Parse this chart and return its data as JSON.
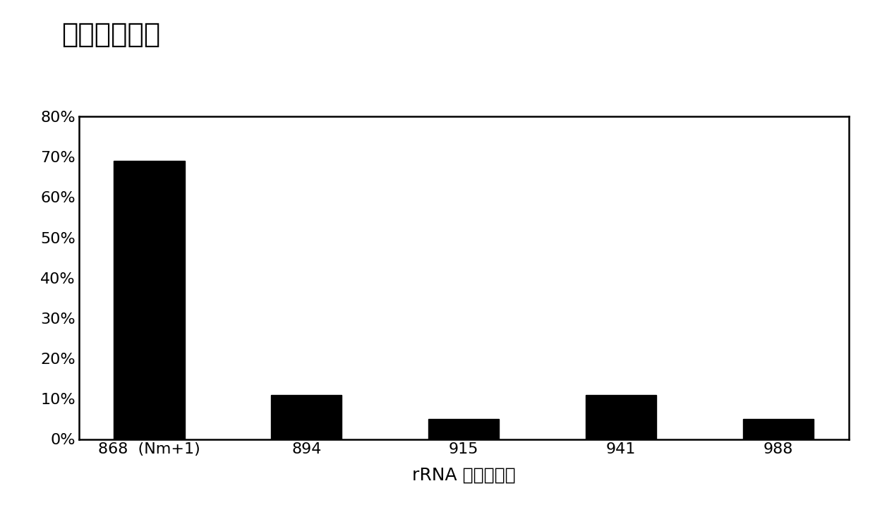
{
  "title": "片段所占比例",
  "xlabel": "rRNA 核苷酸序号",
  "ylabel": "",
  "categories": [
    "868  (Nm+1)",
    "894",
    "915",
    "941",
    "988"
  ],
  "values": [
    0.69,
    0.11,
    0.05,
    0.11,
    0.05
  ],
  "bar_color": "#000000",
  "ylim": [
    0,
    0.8
  ],
  "yticks": [
    0,
    0.1,
    0.2,
    0.3,
    0.4,
    0.5,
    0.6,
    0.7,
    0.8
  ],
  "ytick_labels": [
    "0%",
    "10%",
    "20%",
    "30%",
    "40%",
    "50%",
    "60%",
    "70%",
    "80%"
  ],
  "title_fontsize": 28,
  "axis_fontsize": 18,
  "tick_fontsize": 16,
  "bar_width": 0.45,
  "background_color": "#ffffff"
}
